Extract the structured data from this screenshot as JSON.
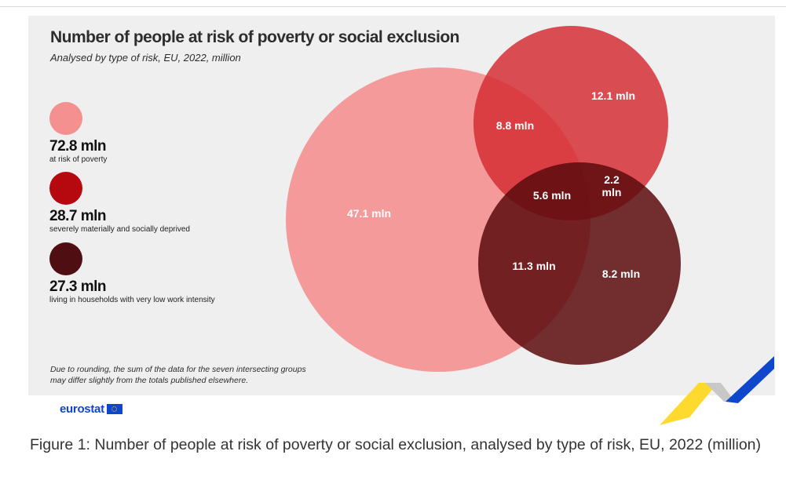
{
  "chart_data": {
    "type": "venn",
    "title": "Number of people at risk of poverty or social exclusion",
    "subtitle": "Analysed by type of risk, EU, 2022, million",
    "sets": [
      {
        "name": "at risk of poverty",
        "total_label": "72.8 mln",
        "total": 72.8,
        "color": "#f59091"
      },
      {
        "name": "severely materially and socially deprived",
        "total_label": "28.7 mln",
        "total": 28.7,
        "color": "#d42a30"
      },
      {
        "name": "living in households with very low work intensity",
        "total_label": "27.3 mln",
        "total": 27.3,
        "color": "#5c0a0d"
      }
    ],
    "regions": [
      {
        "sets": [
          "at risk of poverty"
        ],
        "value": 47.1,
        "label": "47.1 mln"
      },
      {
        "sets": [
          "at risk of poverty",
          "severely materially and socially deprived"
        ],
        "value": 8.8,
        "label": "8.8 mln"
      },
      {
        "sets": [
          "severely materially and socially deprived"
        ],
        "value": 12.1,
        "label": "12.1 mln"
      },
      {
        "sets": [
          "at risk of poverty",
          "severely materially and socially deprived",
          "living in households with very low work intensity"
        ],
        "value": 5.6,
        "label": "5.6 mln"
      },
      {
        "sets": [
          "severely materially and socially deprived",
          "living in households with very low work intensity"
        ],
        "value": 2.2,
        "label_lines": [
          "2.2",
          "mln"
        ]
      },
      {
        "sets": [
          "at risk of poverty",
          "living in households with very low work intensity"
        ],
        "value": 11.3,
        "label": "11.3 mln"
      },
      {
        "sets": [
          "living in households with very low work intensity"
        ],
        "value": 8.2,
        "label": "8.2 mln"
      }
    ],
    "footnote": [
      "Due to rounding, the sum of the data for the seven intersecting groups",
      "may differ slightly from the totals published elsewhere."
    ]
  },
  "brand": "eurostat",
  "caption": "Figure 1: Number of people at risk of poverty or social exclusion, analysed by type of risk, EU, 2022 (million)",
  "colors": {
    "panel_bg": "#efefef",
    "brand_blue": "#0e47cb",
    "brand_yellow": "#ffd617"
  }
}
